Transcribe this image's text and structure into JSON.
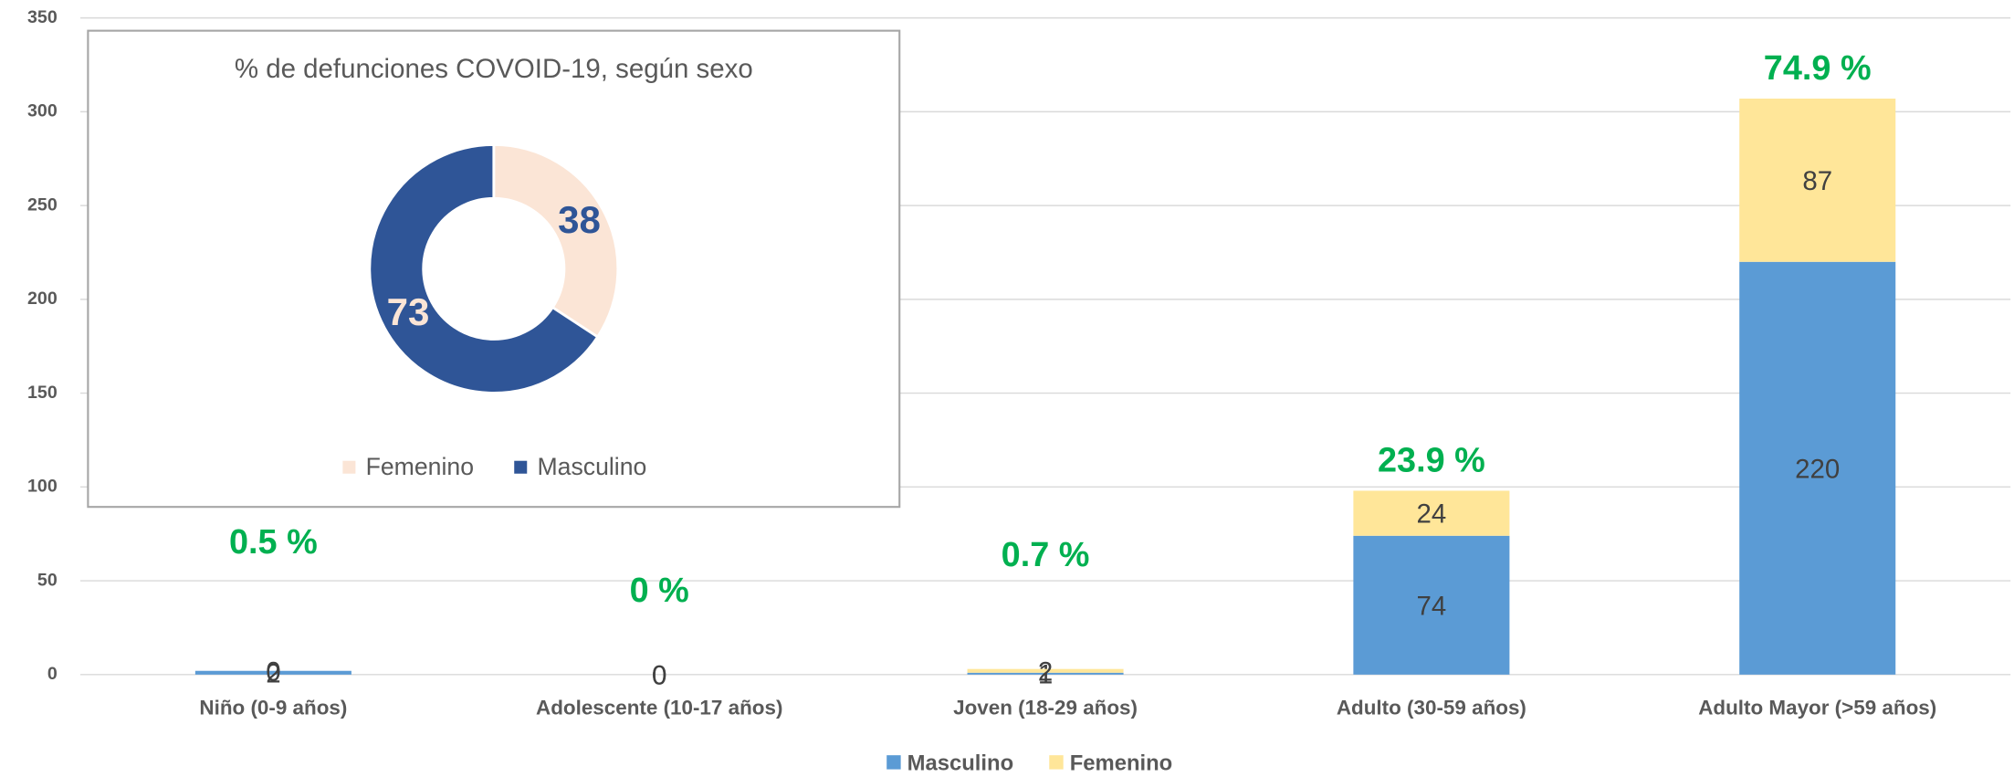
{
  "chart_data": [
    {
      "type": "bar",
      "stacked": true,
      "categories": [
        "Niño (0-9 años)",
        "Adolescente (10-17 años)",
        "Joven (18-29 años)",
        "Adulto (30-59 años)",
        "Adulto Mayor (>59 años)"
      ],
      "series": [
        {
          "name": "Masculino",
          "color": "#5b9bd5",
          "values": [
            2,
            0,
            1,
            74,
            220
          ]
        },
        {
          "name": "Femenino",
          "color": "#ffe699",
          "values": [
            0,
            0,
            2,
            24,
            87
          ]
        }
      ],
      "annotations": [
        "0.5 %",
        "0 %",
        "0.7 %",
        "23.9 %",
        "74.9 %"
      ],
      "ylim": [
        0,
        350
      ],
      "yticks": [
        0,
        50,
        100,
        150,
        200,
        250,
        300,
        350
      ],
      "grid": true,
      "legend": "bottom"
    },
    {
      "type": "pie",
      "donut": true,
      "title": "% de defunciones COVOID-19, según sexo",
      "categories": [
        "Femenino",
        "Masculino"
      ],
      "values": [
        38,
        73
      ],
      "colors": [
        "#fbe5d6",
        "#2f5597"
      ],
      "label_colors": [
        "#2f5597",
        "#fbe5d6"
      ],
      "legend": "bottom"
    }
  ]
}
